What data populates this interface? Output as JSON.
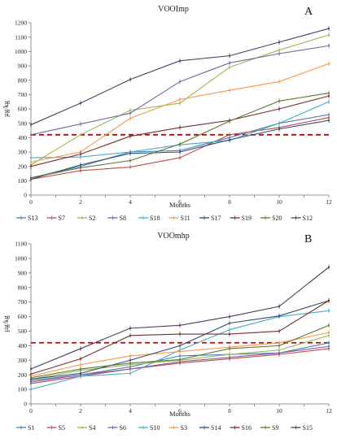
{
  "chart_data": [
    {
      "type": "line",
      "title": "VOOImp",
      "panel_label": "A",
      "xlabel": "Months",
      "ylabel": "µg/kg",
      "x": [
        0,
        2,
        4,
        6,
        8,
        10,
        12
      ],
      "xlim": [
        0,
        12
      ],
      "ylim": [
        0,
        1200
      ],
      "yticks": [
        0,
        100,
        200,
        300,
        400,
        500,
        600,
        700,
        800,
        900,
        1000,
        1100,
        1200
      ],
      "threshold": 420,
      "legend_position": "bottom",
      "series": [
        {
          "name": "S13",
          "color": "#4a7ebb",
          "values": [
            120,
            200,
            300,
            310,
            400,
            500,
            560
          ]
        },
        {
          "name": "S7",
          "color": "#be4b48",
          "values": [
            110,
            170,
            195,
            260,
            420,
            470,
            540
          ]
        },
        {
          "name": "S2",
          "color": "#98b954",
          "values": [
            210,
            420,
            590,
            640,
            890,
            1010,
            1115
          ]
        },
        {
          "name": "S8",
          "color": "#7d60a0",
          "values": [
            420,
            495,
            570,
            790,
            920,
            985,
            1040
          ]
        },
        {
          "name": "S18",
          "color": "#46aac5",
          "values": [
            260,
            265,
            300,
            350,
            380,
            500,
            650
          ]
        },
        {
          "name": "S11",
          "color": "#f79646",
          "values": [
            230,
            300,
            535,
            665,
            730,
            790,
            915
          ]
        },
        {
          "name": "S17",
          "color": "#2c4d75",
          "values": [
            110,
            210,
            290,
            300,
            385,
            460,
            520
          ]
        },
        {
          "name": "S19",
          "color": "#772c2a",
          "values": [
            200,
            285,
            410,
            470,
            520,
            600,
            690
          ]
        },
        {
          "name": "S20",
          "color": "#5f7530",
          "values": [
            120,
            190,
            240,
            355,
            515,
            655,
            710
          ]
        },
        {
          "name": "S12",
          "color": "#4b3a63",
          "values": [
            490,
            640,
            805,
            935,
            970,
            1065,
            1160
          ]
        }
      ]
    },
    {
      "type": "line",
      "title": "VOOmhp",
      "panel_label": "B",
      "xlabel": "Months",
      "ylabel": "µg/kg",
      "x": [
        0,
        2,
        4,
        6,
        8,
        10,
        12
      ],
      "xlim": [
        0,
        12
      ],
      "ylim": [
        0,
        1100
      ],
      "yticks": [
        0,
        100,
        200,
        300,
        400,
        500,
        600,
        700,
        800,
        900,
        1000,
        1100
      ],
      "threshold": 420,
      "legend_position": "bottom",
      "series": [
        {
          "name": "S1",
          "color": "#4a7ebb",
          "values": [
            160,
            200,
            255,
            330,
            340,
            350,
            420
          ]
        },
        {
          "name": "S5",
          "color": "#be4b48",
          "values": [
            140,
            190,
            240,
            280,
            310,
            340,
            380
          ]
        },
        {
          "name": "S4",
          "color": "#98b954",
          "values": [
            170,
            230,
            270,
            300,
            340,
            370,
            470
          ]
        },
        {
          "name": "S6",
          "color": "#7d60a0",
          "values": [
            150,
            200,
            240,
            290,
            320,
            350,
            395
          ]
        },
        {
          "name": "S10",
          "color": "#46aac5",
          "values": [
            100,
            190,
            210,
            370,
            510,
            600,
            640
          ]
        },
        {
          "name": "S3",
          "color": "#f79646",
          "values": [
            190,
            270,
            330,
            360,
            390,
            420,
            490
          ]
        },
        {
          "name": "S14",
          "color": "#2c4d75",
          "values": [
            170,
            210,
            300,
            400,
            555,
            605,
            710
          ]
        },
        {
          "name": "S16",
          "color": "#772c2a",
          "values": [
            205,
            310,
            470,
            480,
            480,
            500,
            710
          ]
        },
        {
          "name": "S9",
          "color": "#5f7530",
          "values": [
            180,
            240,
            280,
            305,
            380,
            400,
            540
          ]
        },
        {
          "name": "S15",
          "color": "#4b3a63",
          "values": [
            240,
            380,
            520,
            540,
            600,
            670,
            940
          ]
        }
      ]
    }
  ]
}
